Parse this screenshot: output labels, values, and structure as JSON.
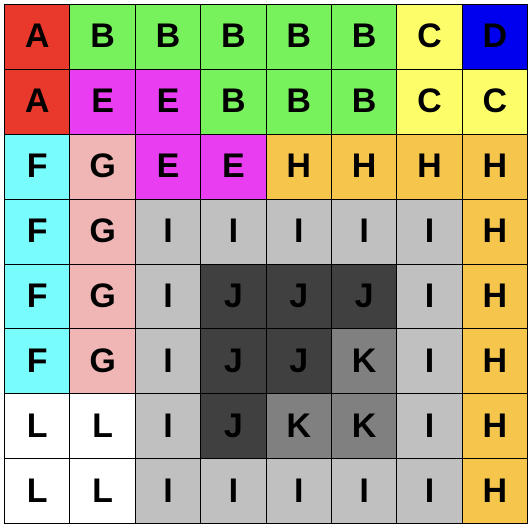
{
  "board": {
    "rows": [
      [
        "A",
        "B",
        "B",
        "B",
        "B",
        "B",
        "C",
        "D"
      ],
      [
        "A",
        "E",
        "E",
        "B",
        "B",
        "B",
        "C",
        "C"
      ],
      [
        "F",
        "G",
        "E",
        "E",
        "H",
        "H",
        "H",
        "H"
      ],
      [
        "F",
        "G",
        "I",
        "I",
        "I",
        "I",
        "I",
        "H"
      ],
      [
        "F",
        "G",
        "I",
        "J",
        "J",
        "J",
        "I",
        "H"
      ],
      [
        "F",
        "G",
        "I",
        "J",
        "J",
        "K",
        "I",
        "H"
      ],
      [
        "L",
        "L",
        "I",
        "J",
        "K",
        "K",
        "I",
        "H"
      ],
      [
        "L",
        "L",
        "I",
        "I",
        "I",
        "I",
        "I",
        "H"
      ]
    ],
    "region_colors": {
      "A": "#e8392c",
      "B": "#78f25c",
      "C": "#fdfd6a",
      "D": "#0000ee",
      "E": "#e83df0",
      "F": "#79fcfc",
      "G": "#f0b5b5",
      "H": "#f5c54c",
      "I": "#c0c0c0",
      "J": "#404040",
      "K": "#808080",
      "L": "#ffffff"
    }
  }
}
